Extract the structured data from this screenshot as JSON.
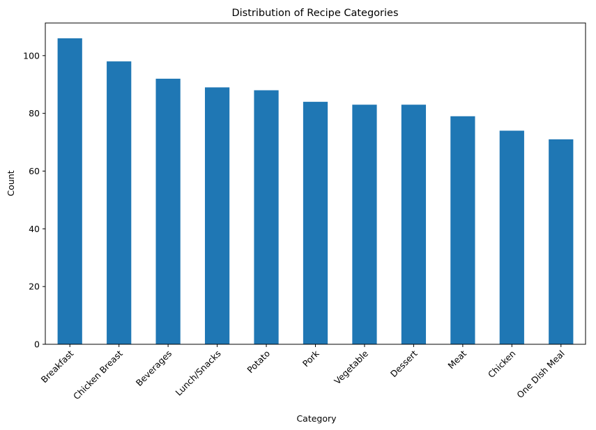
{
  "chart_data": {
    "type": "bar",
    "title": "Distribution of Recipe Categories",
    "xlabel": "Category",
    "ylabel": "Count",
    "categories": [
      "Breakfast",
      "Chicken Breast",
      "Beverages",
      "Lunch/Snacks",
      "Potato",
      "Pork",
      "Vegetable",
      "Dessert",
      "Meat",
      "Chicken",
      "One Dish Meal"
    ],
    "values": [
      106,
      98,
      92,
      89,
      88,
      84,
      83,
      83,
      79,
      74,
      71
    ],
    "ylim": [
      0,
      111.3
    ],
    "yticks": [
      0,
      20,
      40,
      60,
      80,
      100
    ],
    "grid": false,
    "x_tick_rotation": 45,
    "colors": {
      "bar": "#1f77b4"
    }
  }
}
